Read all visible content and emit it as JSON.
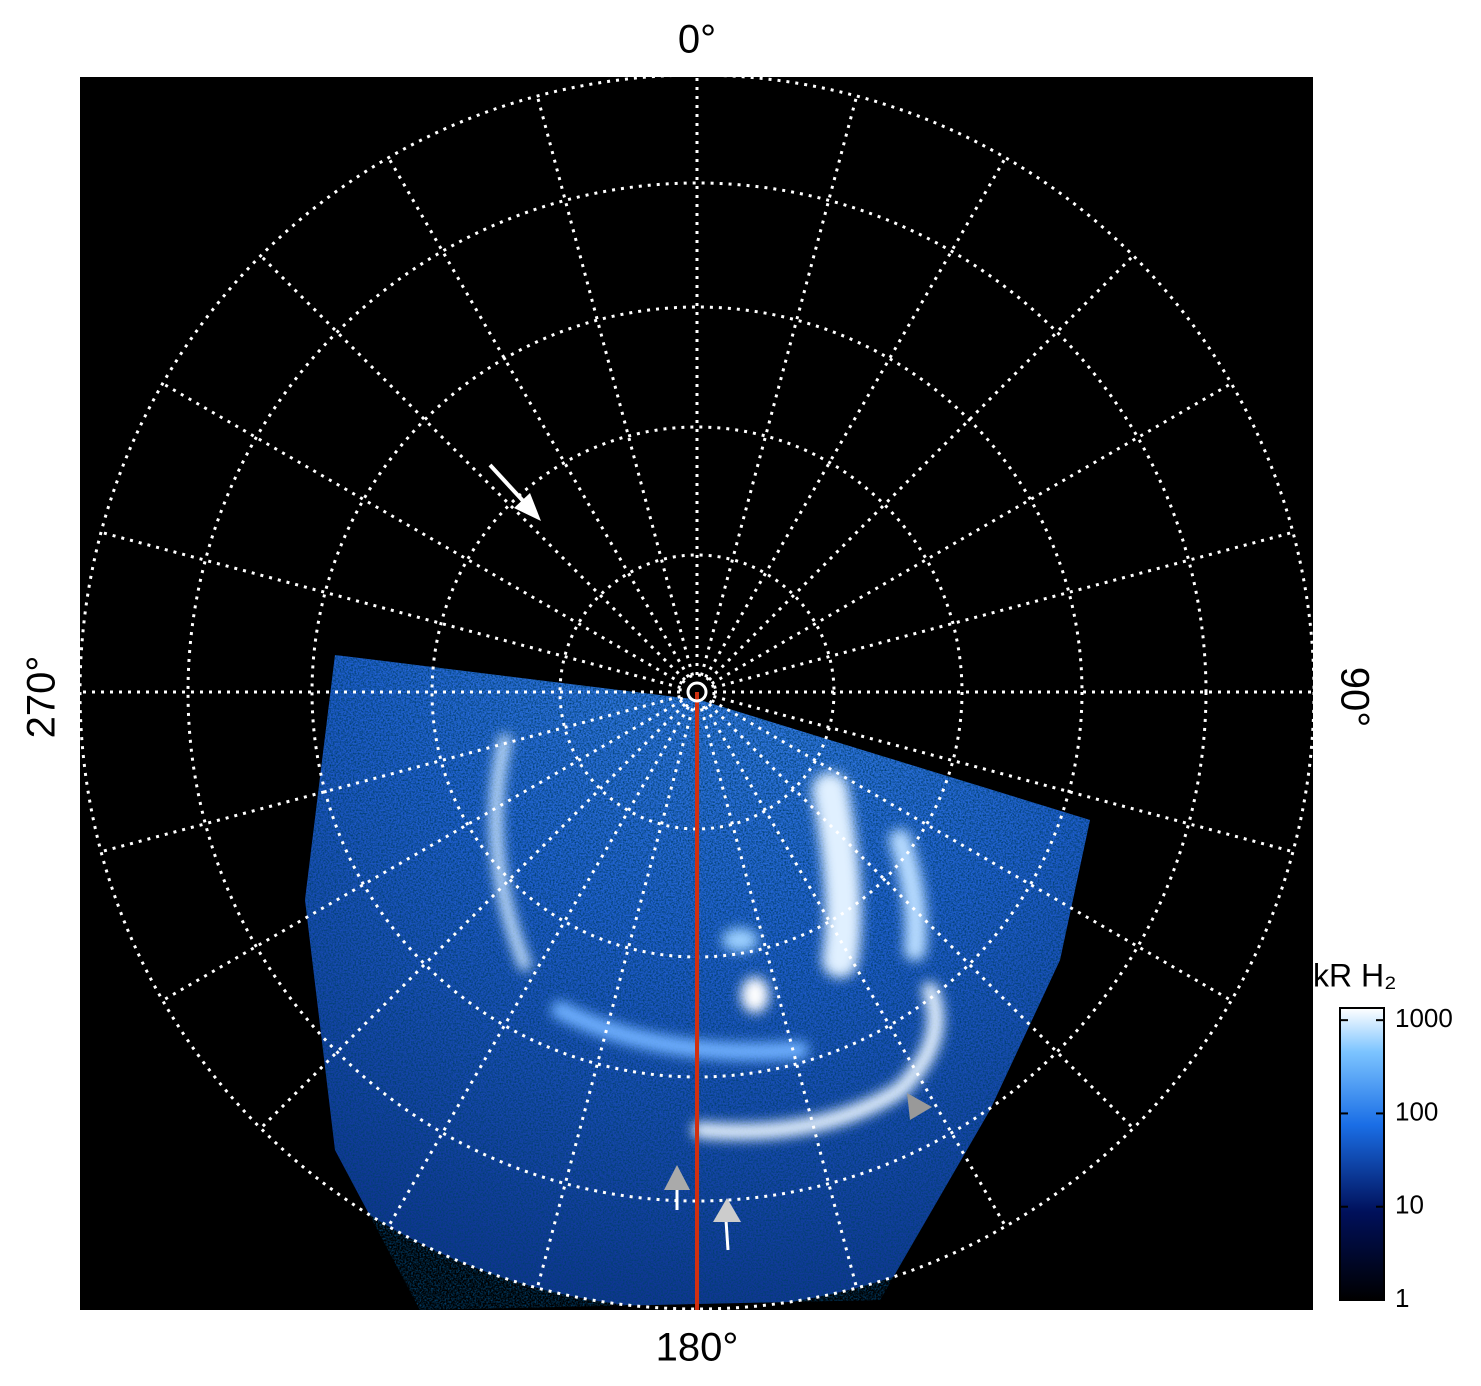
{
  "labels": {
    "top": "0°",
    "bottom": "180°",
    "left": "270°",
    "right": "90°"
  },
  "colorbar": {
    "label": "kR H₂",
    "log": true,
    "lim": [
      1,
      1350
    ],
    "ticks": [
      1,
      10,
      100,
      1000
    ]
  }
}
